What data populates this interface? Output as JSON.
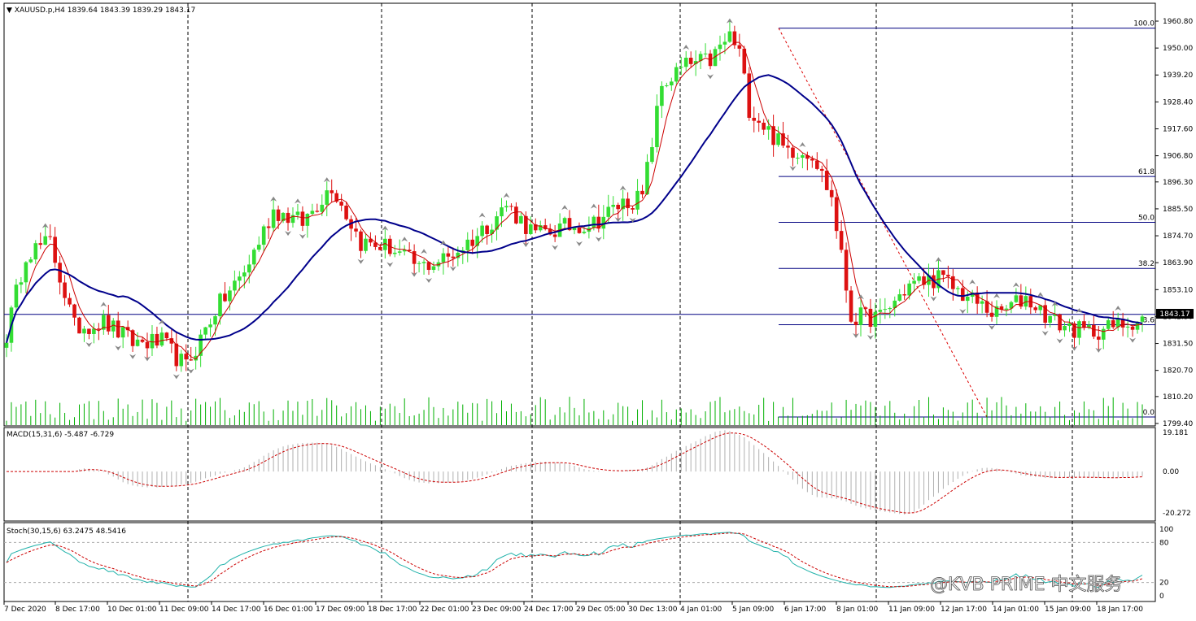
{
  "chart_data": [
    {
      "type": "candlestick",
      "panel": "price",
      "header": {
        "symbol": "XAUUSD.p,H4",
        "ohlc": "1839.64 1843.39 1839.29 1843.17"
      },
      "current_price_label": "1843.17",
      "y_ticks": [
        "1960.80",
        "1950.00",
        "1939.20",
        "1928.40",
        "1917.60",
        "1906.80",
        "1896.30",
        "1885.50",
        "1874.70",
        "1863.90",
        "1853.10",
        "1842.30",
        "1831.50",
        "1820.70",
        "1810.20",
        "1799.40"
      ],
      "ylim": [
        1799.4,
        1960.8
      ],
      "fib_levels": [
        {
          "label": "100.0",
          "value": 1958.0
        },
        {
          "label": "61.8",
          "value": 1898.5
        },
        {
          "label": "50.0",
          "value": 1880.1
        },
        {
          "label": "38.2",
          "value": 1861.6
        },
        {
          "label": "23.6",
          "value": 1839.0
        },
        {
          "label": "0.0",
          "value": 1802.0
        }
      ],
      "fib_visible_text": {
        "23.6": "3.6"
      },
      "current_price": 1843.17,
      "series": [
        {
          "kind": "candles"
        },
        {
          "kind": "fast_ma",
          "color": "#cc0000"
        },
        {
          "kind": "slow_ma",
          "color": "#00008b"
        },
        {
          "kind": "fractals"
        },
        {
          "kind": "volume",
          "color": "#00b000"
        }
      ],
      "colors": {
        "bull": "#33dd33",
        "bear": "#dd1111",
        "grid": "#000000",
        "fib": "#000080"
      }
    },
    {
      "type": "bar",
      "panel": "macd",
      "label": "MACD(15,31,6) -5.487 -6.729",
      "y_ticks": [
        "19.181",
        "0.00",
        "-20.272"
      ],
      "ylim": [
        -20.272,
        19.181
      ],
      "colors": {
        "hist": "#b0b0b0",
        "signal": "#cc0000"
      }
    },
    {
      "type": "line",
      "panel": "stochastic",
      "label": "Stoch(30,15,6) 63.2475 48.5416",
      "y_ticks": [
        "100",
        "80",
        "20",
        "0"
      ],
      "ylim": [
        0,
        100
      ],
      "colors": {
        "main": "#20b2aa",
        "signal": "#cc0000"
      }
    }
  ],
  "x_labels": [
    "7 Dec 2020",
    "8 Dec 17:00",
    "10 Dec 01:00",
    "11 Dec 09:00",
    "14 Dec 17:00",
    "16 Dec 01:00",
    "17 Dec 09:00",
    "18 Dec 17:00",
    "22 Dec 01:00",
    "23 Dec 09:00",
    "24 Dec 17:00",
    "29 Dec 05:00",
    "30 Dec 13:00",
    "4 Jan 01:00",
    "5 Jan 09:00",
    "6 Jan 17:00",
    "8 Jan 01:00",
    "11 Jan 09:00",
    "12 Jan 17:00",
    "14 Jan 01:00",
    "15 Jan 09:00",
    "18 Jan 17:00"
  ],
  "watermark": "@KVB PRIME 中文服务"
}
